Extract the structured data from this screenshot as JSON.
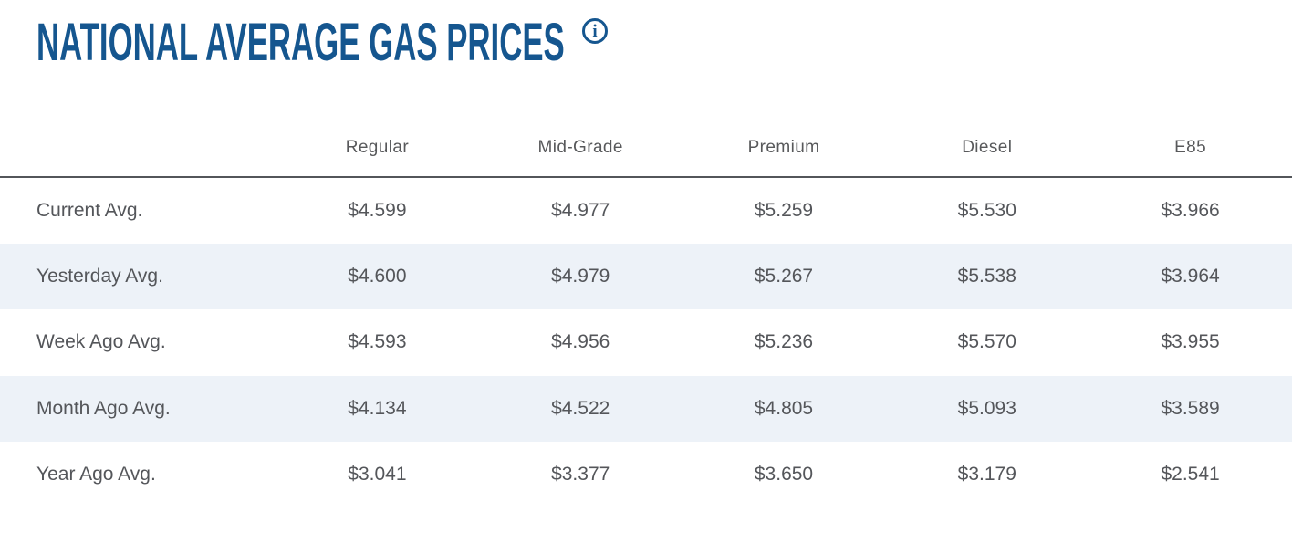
{
  "page": {
    "title": "NATIONAL AVERAGE GAS PRICES",
    "colors": {
      "title_blue": "#15568F",
      "header_gray": "#58595B",
      "cell_text_gray": "#54565A",
      "divider_gray": "#53565A",
      "row_stripe": "#EDF2F8"
    },
    "icons": {
      "info": {
        "name": "info-icon",
        "glyph": "i"
      }
    }
  },
  "table": {
    "columns": [
      "Regular",
      "Mid-Grade",
      "Premium",
      "Diesel",
      "E85"
    ],
    "rows": [
      {
        "label": "Current Avg.",
        "values": [
          "$4.599",
          "$4.977",
          "$5.259",
          "$5.530",
          "$3.966"
        ]
      },
      {
        "label": "Yesterday Avg.",
        "values": [
          "$4.600",
          "$4.979",
          "$5.267",
          "$5.538",
          "$3.964"
        ]
      },
      {
        "label": "Week Ago Avg.",
        "values": [
          "$4.593",
          "$4.956",
          "$5.236",
          "$5.570",
          "$3.955"
        ]
      },
      {
        "label": "Month Ago Avg.",
        "values": [
          "$4.134",
          "$4.522",
          "$4.805",
          "$5.093",
          "$3.589"
        ]
      },
      {
        "label": "Year Ago Avg.",
        "values": [
          "$3.041",
          "$3.377",
          "$3.650",
          "$3.179",
          "$2.541"
        ]
      }
    ]
  }
}
